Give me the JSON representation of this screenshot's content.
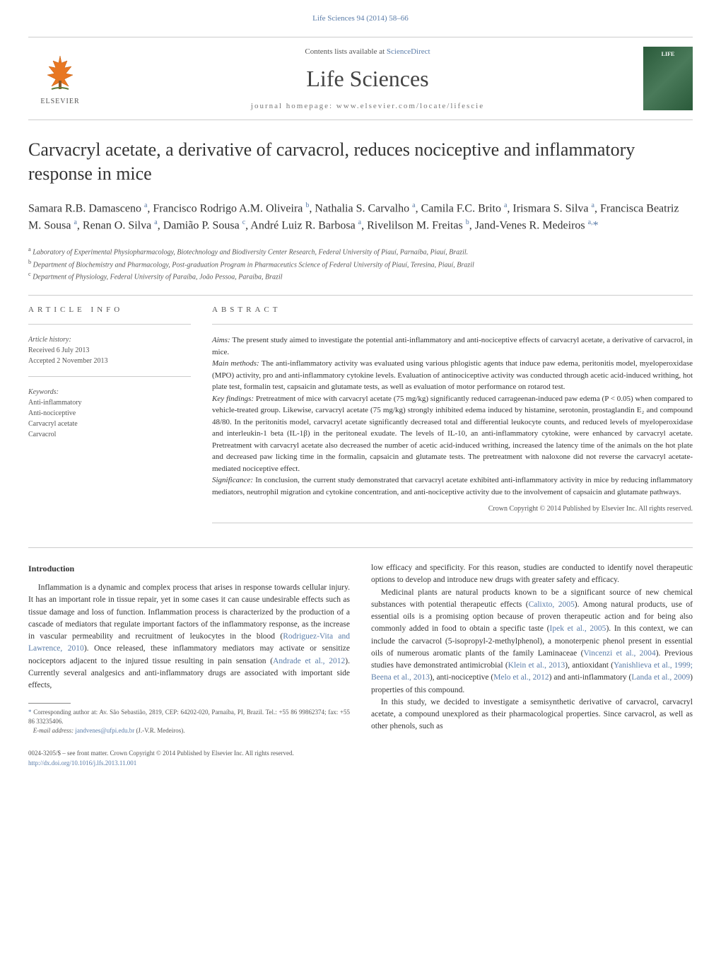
{
  "top_link": "Life Sciences 94 (2014) 58–66",
  "header": {
    "contents_prefix": "Contents lists available at ",
    "contents_link": "ScienceDirect",
    "journal": "Life Sciences",
    "homepage": "journal homepage: www.elsevier.com/locate/lifescie",
    "publisher": "ELSEVIER",
    "cover_label": "LIFE"
  },
  "title": "Carvacryl acetate, a derivative of carvacrol, reduces nociceptive and inflammatory response in mice",
  "authors_html": "Samara R.B. Damasceno <sup>a</sup>, Francisco Rodrigo A.M. Oliveira <sup>b</sup>, Nathalia S. Carvalho <sup>a</sup>, Camila F.C. Brito <sup>a</sup>, Irismara S. Silva <sup>a</sup>, Francisca Beatriz M. Sousa <sup>a</sup>, Renan O. Silva <sup>a</sup>, Damião P. Sousa <sup>c</sup>, André Luiz R. Barbosa <sup>a</sup>, Rivelilson M. Freitas <sup>b</sup>, Jand-Venes R. Medeiros <sup>a,</sup><span class=\"star\">*</span>",
  "affiliations": {
    "a": "Laboratory of Experimental Physiopharmacology, Biotechnology and Biodiversity Center Research, Federal University of Piauí, Parnaíba, Piauí, Brazil.",
    "b": "Department of Biochemistry and Pharmacology, Post-graduation Program in Pharmaceutics Science of Federal University of Piauí, Teresina, Piauí, Brazil",
    "c": "Department of Physiology, Federal University of Paraíba, João Pessoa, Paraíba, Brazil"
  },
  "info": {
    "heading": "ARTICLE INFO",
    "history_label": "Article history:",
    "received": "Received 6 July 2013",
    "accepted": "Accepted 2 November 2013",
    "keywords_label": "Keywords:",
    "keywords": [
      "Anti-inflammatory",
      "Anti-nociceptive",
      "Carvacryl acetate",
      "Carvacrol"
    ]
  },
  "abstract": {
    "heading": "ABSTRACT",
    "aims_label": "Aims:",
    "aims": "The present study aimed to investigate the potential anti-inflammatory and anti-nociceptive effects of carvacryl acetate, a derivative of carvacrol, in mice.",
    "main_label": "Main methods:",
    "main": "The anti-inflammatory activity was evaluated using various phlogistic agents that induce paw edema, peritonitis model, myeloperoxidase (MPO) activity, pro and anti-inflammatory cytokine levels. Evaluation of antinociceptive activity was conducted through acetic acid-induced writhing, hot plate test, formalin test, capsaicin and glutamate tests, as well as evaluation of motor performance on rotarod test.",
    "key_label": "Key findings:",
    "key": "Pretreatment of mice with carvacryl acetate (75 mg/kg) significantly reduced carrageenan-induced paw edema (P < 0.05) when compared to vehicle-treated group. Likewise, carvacryl acetate (75 mg/kg) strongly inhibited edema induced by histamine, serotonin, prostaglandin E₂ and compound 48/80. In the peritonitis model, carvacryl acetate significantly decreased total and differential leukocyte counts, and reduced levels of myeloperoxidase and interleukin-1 beta (IL-1β) in the peritoneal exudate. The levels of IL-10, an anti-inflammatory cytokine, were enhanced by carvacryl acetate. Pretreatment with carvacryl acetate also decreased the number of acetic acid-induced writhing, increased the latency time of the animals on the hot plate and decreased paw licking time in the formalin, capsaicin and glutamate tests. The pretreatment with naloxone did not reverse the carvacryl acetate-mediated nociceptive effect.",
    "sig_label": "Significance:",
    "sig": "In conclusion, the current study demonstrated that carvacryl acetate exhibited anti-inflammatory activity in mice by reducing inflammatory mediators, neutrophil migration and cytokine concentration, and anti-nociceptive activity due to the involvement of capsaicin and glutamate pathways.",
    "copyright": "Crown Copyright © 2014 Published by Elsevier Inc. All rights reserved."
  },
  "body": {
    "intro_heading": "Introduction",
    "left": {
      "p1a": "Inflammation is a dynamic and complex process that arises in response towards cellular injury. It has an important role in tissue repair, yet in some cases it can cause undesirable effects such as tissue damage and loss of function. Inflammation process is characterized by the production of a cascade of mediators that regulate important factors of the inflammatory response, as the increase in vascular permeability and recruitment of leukocytes in the blood (",
      "c1": "Rodriguez-Vita and Lawrence, 2010",
      "p1b": "). Once released, these inflammatory mediators may activate or sensitize nociceptors adjacent to the injured tissue resulting in pain sensation (",
      "c2": "Andrade et al., 2012",
      "p1c": "). Currently several analgesics and anti-inflammatory drugs are associated with important side effects,"
    },
    "right": {
      "p1": "low efficacy and specificity. For this reason, studies are conducted to identify novel therapeutic options to develop and introduce new drugs with greater safety and efficacy.",
      "p2a": "Medicinal plants are natural products known to be a significant source of new chemical substances with potential therapeutic effects (",
      "c1": "Calixto, 2005",
      "p2b": "). Among natural products, use of essential oils is a promising option because of proven therapeutic action and for being also commonly added in food to obtain a specific taste (",
      "c2": "Ipek et al., 2005",
      "p2c": "). In this context, we can include the carvacrol (5-isopropyl-2-methylphenol), a monoterpenic phenol present in essential oils of numerous aromatic plants of the family Laminaceae (",
      "c3": "Vincenzi et al., 2004",
      "p2d": "). Previous studies have demonstrated antimicrobial (",
      "c4": "Klein et al., 2013",
      "p2e": "), antioxidant (",
      "c5": "Yanishlieva et al., 1999; Beena et al., 2013",
      "p2f": "), anti-nociceptive (",
      "c6": "Melo et al., 2012",
      "p2g": ") and anti-inflammatory (",
      "c7": "Landa et al., 2009",
      "p2h": ") properties of this compound.",
      "p3": "In this study, we decided to investigate a semisynthetic derivative of carvacrol, carvacryl acetate, a compound unexplored as their pharmacological properties. Since carvacrol, as well as other phenols, such as"
    }
  },
  "footnote": {
    "corr": "Corresponding author at: Av. São Sebastião, 2819, CEP: 64202-020, Parnaíba, PI, Brazil. Tel.: +55 86 99862374; fax: +55 86 33235406.",
    "email_label": "E-mail address:",
    "email": "jandvenes@ufpi.edu.br",
    "email_who": "(J.-V.R. Medeiros)."
  },
  "bottom": {
    "line1": "0024-3205/$ – see front matter. Crown Copyright © 2014 Published by Elsevier Inc. All rights reserved.",
    "doi": "http://dx.doi.org/10.1016/j.lfs.2013.11.001"
  },
  "colors": {
    "link": "#5a7ca8",
    "text": "#333333",
    "muted": "#555555",
    "rule": "#cccccc",
    "cover_bg": "#2a5a3a"
  },
  "typography": {
    "body_size_pt": 11,
    "title_size_pt": 26,
    "journal_size_pt": 32,
    "small_size_pt": 10,
    "font_family": "Georgia, serif"
  }
}
